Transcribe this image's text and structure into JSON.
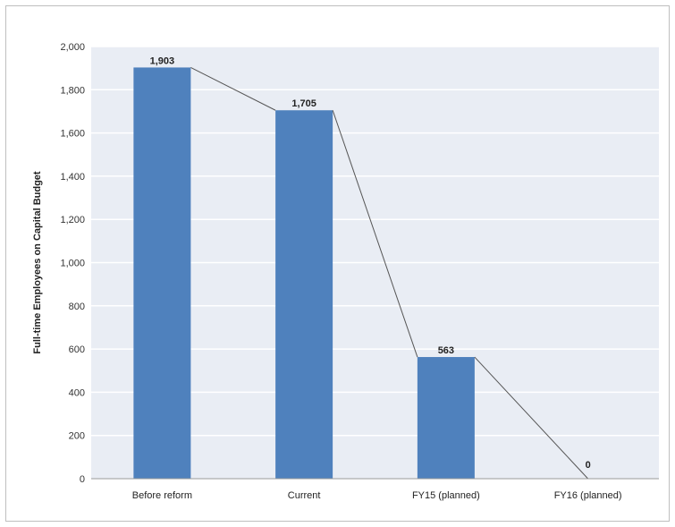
{
  "chart_data": {
    "type": "bar",
    "title": "",
    "xlabel": "",
    "ylabel": "Full-time Employees on Capital Budget",
    "categories": [
      "Before reform",
      "Current",
      "FY15 (planned)",
      "FY16 (planned)"
    ],
    "values": [
      1903,
      1705,
      563,
      0
    ],
    "data_labels": [
      "1,903",
      "1,705",
      "563",
      "0"
    ],
    "ylim": [
      0,
      2000
    ],
    "yticks": [
      0,
      200,
      400,
      600,
      800,
      1000,
      1200,
      1400,
      1600,
      1800,
      2000
    ],
    "ytick_labels": [
      "0",
      "200",
      "400",
      "600",
      "800",
      "1,000",
      "1,200",
      "1,400",
      "1,600",
      "1,800",
      "2,000"
    ],
    "grid": true,
    "connector_line": true,
    "legend": "none",
    "colors": {
      "bar": "#4f81bd",
      "plot_background": "#e9edf4",
      "gridline": "#ffffff",
      "connector": "#555555"
    }
  }
}
